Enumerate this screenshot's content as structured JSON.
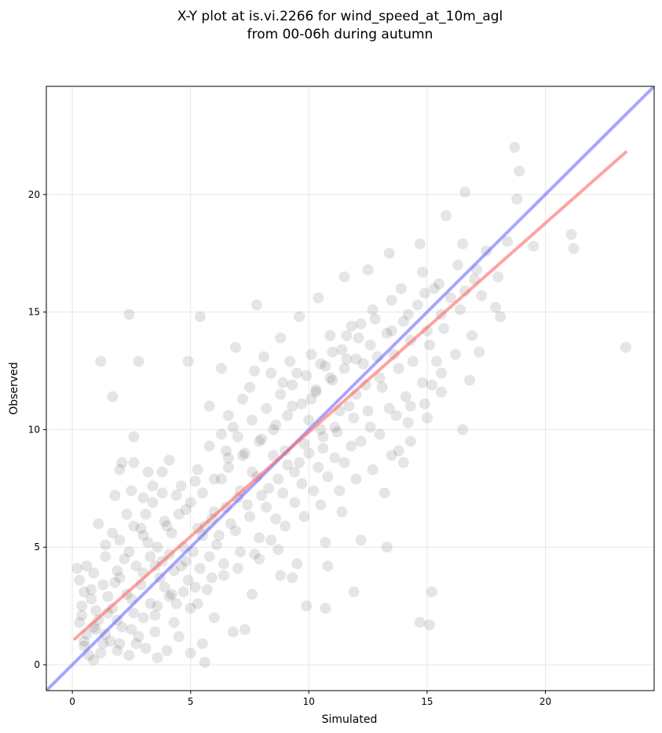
{
  "chart_data": {
    "type": "scatter",
    "title": [
      "X-Y plot at is.vi.2266 for wind_speed_at_10m_agl",
      "from 00-06h during autumn"
    ],
    "xlabel": "Simulated",
    "ylabel": "Observed",
    "xlim": [
      -1.1,
      24.6
    ],
    "ylim": [
      -1.1,
      24.6
    ],
    "xticks": [
      0,
      5,
      10,
      15,
      20
    ],
    "yticks": [
      0,
      5,
      10,
      15,
      20
    ],
    "tick_labels_x": [
      "0",
      "5",
      "10",
      "15",
      "20"
    ],
    "tick_labels_y": [
      "0",
      "5",
      "10",
      "15",
      "20"
    ],
    "grid": true,
    "colors": {
      "points": "#000000",
      "identity_line": "#4d4dff",
      "fit_line": "#ff6666"
    },
    "identity_line": {
      "x": [
        -1.1,
        24.6
      ],
      "y": [
        -1.1,
        24.6
      ]
    },
    "fit_line": {
      "x": [
        0.1,
        23.4
      ],
      "y": [
        1.1,
        21.8
      ]
    },
    "points": [
      [
        0.3,
        1.8
      ],
      [
        0.5,
        0.8
      ],
      [
        0.4,
        2.5
      ],
      [
        0.8,
        3.2
      ],
      [
        1.0,
        1.5
      ],
      [
        1.2,
        0.5
      ],
      [
        0.6,
        4.2
      ],
      [
        1.5,
        2.2
      ],
      [
        1.8,
        3.5
      ],
      [
        2.0,
        0.9
      ],
      [
        2.2,
        4.5
      ],
      [
        1.4,
        5.1
      ],
      [
        2.5,
        2.8
      ],
      [
        2.8,
        1.2
      ],
      [
        3.0,
        3.9
      ],
      [
        3.2,
        5.2
      ],
      [
        3.5,
        2.1
      ],
      [
        3.8,
        4.4
      ],
      [
        4.0,
        0.6
      ],
      [
        4.2,
        3.0
      ],
      [
        0.9,
        0.2
      ],
      [
        1.6,
        1.0
      ],
      [
        2.4,
        0.4
      ],
      [
        3.1,
        0.7
      ],
      [
        3.6,
        0.3
      ],
      [
        4.5,
        1.2
      ],
      [
        5.0,
        0.5
      ],
      [
        5.5,
        0.9
      ],
      [
        0.2,
        4.1
      ],
      [
        0.3,
        3.6
      ],
      [
        1.1,
        6.0
      ],
      [
        1.7,
        5.6
      ],
      [
        2.3,
        6.4
      ],
      [
        2.9,
        5.8
      ],
      [
        3.4,
        6.9
      ],
      [
        3.9,
        6.1
      ],
      [
        4.4,
        7.2
      ],
      [
        4.8,
        6.6
      ],
      [
        5.2,
        7.8
      ],
      [
        5.6,
        5.9
      ],
      [
        6.0,
        6.5
      ],
      [
        6.3,
        7.9
      ],
      [
        6.6,
        8.8
      ],
      [
        7.0,
        7.1
      ],
      [
        7.3,
        9.0
      ],
      [
        7.6,
        8.2
      ],
      [
        8.0,
        9.6
      ],
      [
        8.3,
        7.5
      ],
      [
        8.6,
        10.2
      ],
      [
        9.0,
        9.1
      ],
      [
        9.3,
        11.0
      ],
      [
        9.6,
        8.6
      ],
      [
        10.0,
        10.4
      ],
      [
        10.3,
        11.6
      ],
      [
        10.6,
        9.7
      ],
      [
        11.0,
        12.1
      ],
      [
        11.3,
        10.8
      ],
      [
        11.6,
        13.0
      ],
      [
        12.0,
        11.5
      ],
      [
        12.3,
        12.8
      ],
      [
        12.6,
        13.6
      ],
      [
        13.0,
        12.2
      ],
      [
        13.3,
        14.1
      ],
      [
        13.6,
        13.2
      ],
      [
        14.0,
        14.6
      ],
      [
        14.3,
        13.8
      ],
      [
        14.6,
        15.3
      ],
      [
        15.0,
        14.2
      ],
      [
        15.3,
        16.0
      ],
      [
        15.6,
        14.9
      ],
      [
        16.0,
        15.6
      ],
      [
        16.3,
        17.0
      ],
      [
        16.6,
        15.9
      ],
      [
        17.0,
        16.4
      ],
      [
        17.5,
        17.6
      ],
      [
        18.0,
        16.5
      ],
      [
        18.4,
        18.0
      ],
      [
        18.8,
        19.8
      ],
      [
        19.5,
        17.8
      ],
      [
        21.2,
        17.7
      ],
      [
        21.1,
        18.3
      ],
      [
        23.4,
        13.5
      ],
      [
        18.7,
        22.0
      ],
      [
        18.9,
        21.0
      ],
      [
        16.6,
        20.1
      ],
      [
        15.8,
        19.1
      ],
      [
        14.7,
        17.9
      ],
      [
        13.4,
        17.5
      ],
      [
        12.5,
        16.8
      ],
      [
        11.5,
        16.5
      ],
      [
        10.4,
        15.6
      ],
      [
        9.6,
        14.8
      ],
      [
        8.8,
        13.9
      ],
      [
        7.8,
        15.3
      ],
      [
        6.9,
        13.5
      ],
      [
        6.3,
        12.6
      ],
      [
        5.4,
        14.8
      ],
      [
        2.4,
        14.9
      ],
      [
        1.2,
        12.9
      ],
      [
        2.8,
        12.9
      ],
      [
        1.7,
        11.4
      ],
      [
        4.9,
        12.9
      ],
      [
        5.8,
        11.0
      ],
      [
        6.6,
        10.6
      ],
      [
        7.5,
        11.8
      ],
      [
        8.4,
        12.4
      ],
      [
        9.2,
        12.9
      ],
      [
        10.1,
        13.2
      ],
      [
        10.9,
        14.0
      ],
      [
        11.8,
        14.4
      ],
      [
        12.7,
        15.1
      ],
      [
        13.9,
        16.0
      ],
      [
        14.8,
        16.7
      ],
      [
        15.5,
        16.2
      ],
      [
        16.5,
        17.9
      ],
      [
        17.1,
        16.8
      ],
      [
        17.9,
        15.2
      ],
      [
        18.1,
        14.8
      ],
      [
        17.2,
        13.3
      ],
      [
        16.8,
        12.1
      ],
      [
        16.5,
        10.0
      ],
      [
        15.2,
        11.9
      ],
      [
        14.3,
        11.0
      ],
      [
        13.7,
        10.6
      ],
      [
        13.0,
        9.8
      ],
      [
        12.2,
        9.5
      ],
      [
        11.5,
        8.6
      ],
      [
        10.8,
        8.0
      ],
      [
        10.2,
        7.4
      ],
      [
        9.4,
        6.9
      ],
      [
        8.6,
        6.2
      ],
      [
        7.9,
        5.4
      ],
      [
        7.1,
        4.8
      ],
      [
        6.4,
        3.8
      ],
      [
        5.7,
        3.2
      ],
      [
        5.0,
        2.4
      ],
      [
        4.3,
        1.8
      ],
      [
        3.5,
        1.4
      ],
      [
        2.7,
        0.9
      ],
      [
        1.9,
        0.6
      ],
      [
        13.2,
        7.3
      ],
      [
        13.3,
        5.0
      ],
      [
        12.2,
        5.3
      ],
      [
        11.9,
        3.1
      ],
      [
        11.4,
        6.5
      ],
      [
        10.7,
        5.2
      ],
      [
        10.8,
        4.2
      ],
      [
        10.7,
        2.4
      ],
      [
        9.9,
        2.5
      ],
      [
        9.5,
        4.3
      ],
      [
        9.3,
        3.7
      ],
      [
        8.8,
        3.8
      ],
      [
        8.7,
        4.9
      ],
      [
        7.9,
        4.5
      ],
      [
        7.6,
        3.0
      ],
      [
        7.3,
        1.5
      ],
      [
        6.8,
        1.4
      ],
      [
        6.0,
        2.0
      ],
      [
        5.6,
        0.1
      ],
      [
        14.7,
        1.8
      ],
      [
        15.1,
        1.7
      ],
      [
        15.2,
        3.1
      ],
      [
        14.0,
        8.6
      ],
      [
        13.8,
        9.1
      ],
      [
        14.3,
        9.5
      ],
      [
        15.0,
        10.5
      ],
      [
        15.6,
        12.4
      ],
      [
        16.2,
        13.2
      ],
      [
        16.9,
        14.0
      ],
      [
        17.3,
        15.7
      ],
      [
        2.0,
        8.3
      ],
      [
        2.1,
        8.6
      ],
      [
        2.6,
        8.6
      ],
      [
        3.2,
        8.2
      ],
      [
        3.8,
        8.2
      ],
      [
        4.1,
        8.7
      ],
      [
        2.6,
        9.7
      ],
      [
        1.8,
        7.2
      ],
      [
        2.5,
        7.4
      ],
      [
        3.0,
        7.1
      ],
      [
        3.4,
        7.6
      ],
      [
        3.8,
        7.3
      ],
      [
        4.6,
        7.6
      ],
      [
        5.3,
        8.3
      ],
      [
        5.8,
        9.3
      ],
      [
        6.3,
        9.8
      ],
      [
        6.8,
        10.1
      ],
      [
        7.2,
        11.3
      ],
      [
        7.7,
        12.5
      ],
      [
        8.1,
        13.1
      ],
      [
        8.9,
        12.0
      ],
      [
        9.5,
        12.4
      ],
      [
        10.1,
        11.3
      ],
      [
        10.7,
        12.7
      ],
      [
        11.4,
        13.4
      ],
      [
        12.1,
        13.9
      ],
      [
        12.8,
        14.7
      ],
      [
        13.5,
        15.5
      ],
      [
        14.2,
        14.9
      ],
      [
        14.9,
        15.8
      ],
      [
        11.7,
        11.0
      ],
      [
        12.4,
        11.9
      ],
      [
        11.1,
        10.1
      ],
      [
        10.5,
        10.0
      ],
      [
        9.8,
        9.4
      ],
      [
        9.1,
        8.5
      ],
      [
        8.5,
        8.9
      ],
      [
        7.8,
        8.0
      ],
      [
        7.1,
        7.4
      ],
      [
        6.5,
        6.7
      ],
      [
        5.9,
        6.2
      ],
      [
        5.3,
        5.8
      ],
      [
        4.7,
        5.0
      ],
      [
        4.1,
        4.7
      ],
      [
        3.5,
        4.2
      ],
      [
        2.9,
        3.4
      ],
      [
        2.3,
        3.0
      ],
      [
        1.7,
        2.4
      ],
      [
        1.1,
        1.9
      ],
      [
        0.6,
        1.3
      ],
      [
        0.8,
        2.8
      ],
      [
        1.3,
        3.4
      ],
      [
        1.9,
        4.0
      ],
      [
        2.4,
        4.8
      ],
      [
        3.0,
        5.5
      ],
      [
        3.6,
        5.0
      ],
      [
        4.2,
        5.6
      ],
      [
        4.6,
        4.2
      ],
      [
        5.1,
        4.8
      ],
      [
        5.5,
        5.5
      ],
      [
        6.1,
        5.1
      ],
      [
        6.7,
        6.0
      ],
      [
        7.4,
        6.8
      ],
      [
        8.0,
        7.2
      ],
      [
        8.7,
        7.9
      ],
      [
        9.4,
        8.2
      ],
      [
        10.0,
        9.0
      ],
      [
        10.6,
        9.2
      ],
      [
        11.2,
        9.9
      ],
      [
        11.9,
        10.5
      ],
      [
        12.5,
        10.8
      ],
      [
        13.1,
        11.8
      ],
      [
        13.8,
        12.6
      ],
      [
        14.4,
        12.9
      ],
      [
        15.1,
        13.6
      ],
      [
        15.7,
        14.3
      ],
      [
        16.4,
        15.1
      ],
      [
        3.3,
        2.6
      ],
      [
        3.9,
        3.3
      ],
      [
        4.4,
        2.6
      ],
      [
        4.9,
        3.6
      ],
      [
        5.4,
        4.1
      ],
      [
        2.1,
        1.6
      ],
      [
        2.6,
        2.2
      ],
      [
        1.3,
        0.9
      ],
      [
        0.7,
        0.4
      ],
      [
        1.0,
        2.3
      ],
      [
        1.5,
        2.9
      ],
      [
        2.0,
        3.7
      ],
      [
        2.7,
        4.2
      ],
      [
        3.3,
        4.6
      ],
      [
        3.7,
        3.7
      ],
      [
        4.3,
        4.0
      ],
      [
        4.8,
        4.4
      ],
      [
        5.2,
        3.3
      ],
      [
        5.8,
        4.6
      ],
      [
        6.2,
        5.5
      ],
      [
        6.9,
        5.7
      ],
      [
        7.5,
        6.3
      ],
      [
        8.2,
        6.7
      ],
      [
        8.9,
        7.3
      ],
      [
        9.7,
        7.7
      ],
      [
        10.4,
        8.4
      ],
      [
        11.1,
        8.8
      ],
      [
        11.8,
        9.3
      ],
      [
        12.6,
        10.1
      ],
      [
        13.4,
        10.9
      ],
      [
        14.1,
        11.4
      ],
      [
        14.8,
        12.0
      ],
      [
        15.4,
        12.9
      ],
      [
        6.5,
        9.1
      ],
      [
        7.0,
        9.7
      ],
      [
        7.6,
        10.4
      ],
      [
        8.2,
        10.9
      ],
      [
        8.8,
        11.5
      ],
      [
        9.3,
        11.9
      ],
      [
        9.9,
        12.3
      ],
      [
        10.5,
        12.8
      ],
      [
        11.0,
        13.3
      ],
      [
        11.6,
        14.0
      ],
      [
        12.2,
        14.5
      ],
      [
        12.9,
        13.1
      ],
      [
        13.5,
        14.2
      ],
      [
        4.0,
        5.9
      ],
      [
        4.5,
        6.4
      ],
      [
        5.0,
        6.9
      ],
      [
        5.5,
        7.3
      ],
      [
        6.0,
        7.9
      ],
      [
        6.6,
        8.4
      ],
      [
        7.2,
        8.9
      ],
      [
        7.9,
        9.5
      ],
      [
        8.5,
        10.0
      ],
      [
        9.1,
        10.6
      ],
      [
        9.7,
        11.1
      ],
      [
        10.3,
        11.7
      ],
      [
        10.9,
        12.2
      ],
      [
        11.5,
        12.6
      ],
      [
        12.0,
        13.0
      ],
      [
        3.1,
        6.4
      ],
      [
        2.6,
        5.9
      ],
      [
        2.0,
        5.3
      ],
      [
        1.4,
        4.6
      ],
      [
        0.9,
        3.9
      ],
      [
        0.5,
        3.1
      ],
      [
        0.4,
        2.1
      ],
      [
        0.5,
        1.0
      ],
      [
        0.9,
        1.6
      ],
      [
        1.4,
        1.3
      ],
      [
        1.9,
        1.9
      ],
      [
        2.5,
        1.5
      ],
      [
        3.0,
        2.0
      ],
      [
        3.6,
        2.5
      ],
      [
        4.1,
        2.9
      ],
      [
        4.7,
        3.1
      ],
      [
        5.3,
        2.6
      ],
      [
        5.9,
        3.7
      ],
      [
        6.4,
        4.3
      ],
      [
        7.0,
        4.1
      ],
      [
        7.7,
        4.7
      ],
      [
        8.4,
        5.3
      ],
      [
        9.0,
        5.9
      ],
      [
        9.8,
        6.3
      ],
      [
        10.5,
        6.8
      ],
      [
        11.3,
        7.4
      ],
      [
        12.0,
        7.9
      ],
      [
        12.7,
        8.3
      ],
      [
        13.5,
        8.9
      ],
      [
        14.2,
        10.3
      ],
      [
        14.9,
        11.1
      ],
      [
        15.6,
        11.6
      ]
    ]
  }
}
